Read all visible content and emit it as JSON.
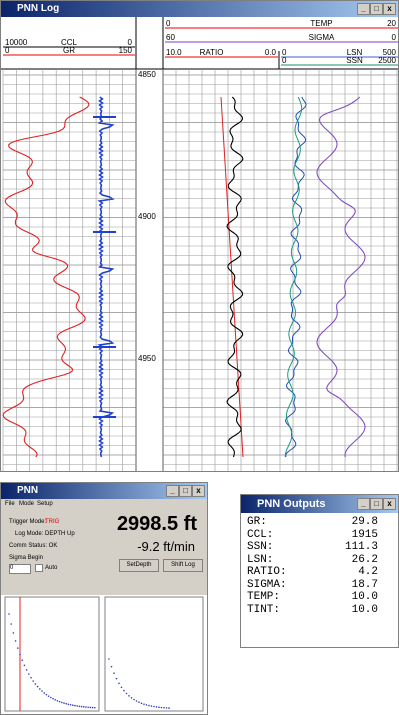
{
  "log_window": {
    "title": "PNN Log",
    "left_headers": [
      {
        "name": "CCL",
        "min": "10000",
        "max": "0"
      },
      {
        "name": "GR",
        "min": "0",
        "max": "150"
      }
    ],
    "right_headers": [
      {
        "name": "TEMP",
        "min": "0",
        "max": "20"
      },
      {
        "name": "SIGMA",
        "min": "60",
        "max": "0"
      },
      {
        "name": "RATIO",
        "min": "10.0",
        "max": "0.0"
      },
      {
        "name": "LSN",
        "min": "0",
        "max": "500"
      },
      {
        "name": "SSN",
        "min": "0",
        "max": "2500"
      }
    ],
    "depths": [
      "4850",
      "4900",
      "4950"
    ]
  },
  "control_window": {
    "title": "PNN",
    "menu": [
      "File",
      "Mode",
      "Setup"
    ],
    "trigger_label": "Trigger Mode:",
    "trigger_value": "TRIG",
    "log_mode": "Log Mode: DEPTH Up",
    "comm_status": "Comm Status: OK",
    "sigma_begin": "Sigma Begin",
    "sigma_value": "0",
    "auto": "Auto",
    "depth": "2998.5 ft",
    "speed": "-9.2 ft/min",
    "buttons": [
      "SetDepth",
      "Shift Log"
    ]
  },
  "outputs_window": {
    "title": "PNN Outputs",
    "rows": [
      [
        "GR:",
        "29.8"
      ],
      [
        "CCL:",
        "1915"
      ],
      [
        "SSN:",
        "111.3"
      ],
      [
        "LSN:",
        "26.2"
      ],
      [
        "RATIO:",
        "4.2"
      ],
      [
        "SIGMA:",
        "18.7"
      ],
      [
        "TEMP:",
        "10.0"
      ],
      [
        "TINT:",
        "10.0"
      ]
    ]
  }
}
